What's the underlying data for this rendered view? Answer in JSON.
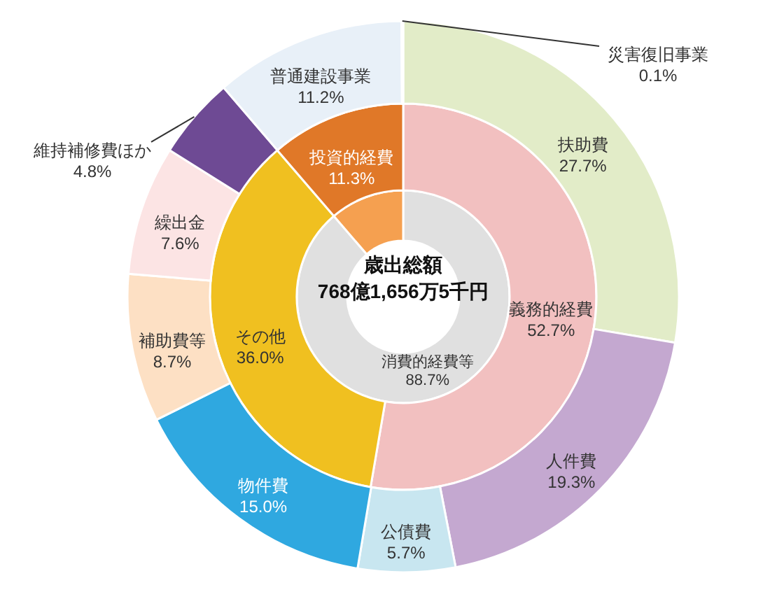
{
  "chart_data": [
    {
      "type": "donut",
      "title": "歳出総額",
      "subtitle": "768億1,656万5千円",
      "categories": [
        "消費的経費等",
        null
      ],
      "values": [
        88.7,
        11.3
      ],
      "colors": [
        "#e0e0e0",
        "#f5a050"
      ],
      "value_labels": [
        "88.7%",
        null
      ]
    },
    {
      "type": "donut",
      "categories": [
        "義務的経費",
        "その他",
        "投資的経費"
      ],
      "values": [
        52.7,
        36.0,
        11.3
      ],
      "colors": [
        "#f2c0c0",
        "#f0c020",
        "#e07828"
      ],
      "value_labels": [
        "52.7%",
        "36.0%",
        "11.3%"
      ]
    },
    {
      "type": "donut",
      "categories": [
        "扶助費",
        "人件費",
        "公債費",
        "物件費",
        "補助費等",
        "繰出金",
        "維持補修費ほか",
        "普通建設事業",
        "災害復旧事業"
      ],
      "values": [
        27.7,
        19.3,
        5.7,
        15.0,
        8.7,
        7.6,
        4.8,
        11.2,
        0.1
      ],
      "colors": [
        "#e2ecc8",
        "#c4a8d0",
        "#c8e6f0",
        "#2fa8e0",
        "#fde0c4",
        "#fce4e4",
        "#6e4a94",
        "#e8f0f8",
        "#333333"
      ],
      "value_labels": [
        "27.7%",
        "19.3%",
        "5.7%",
        "15.0%",
        "8.7%",
        "7.6%",
        "4.8%",
        "11.2%",
        "0.1%"
      ]
    }
  ]
}
